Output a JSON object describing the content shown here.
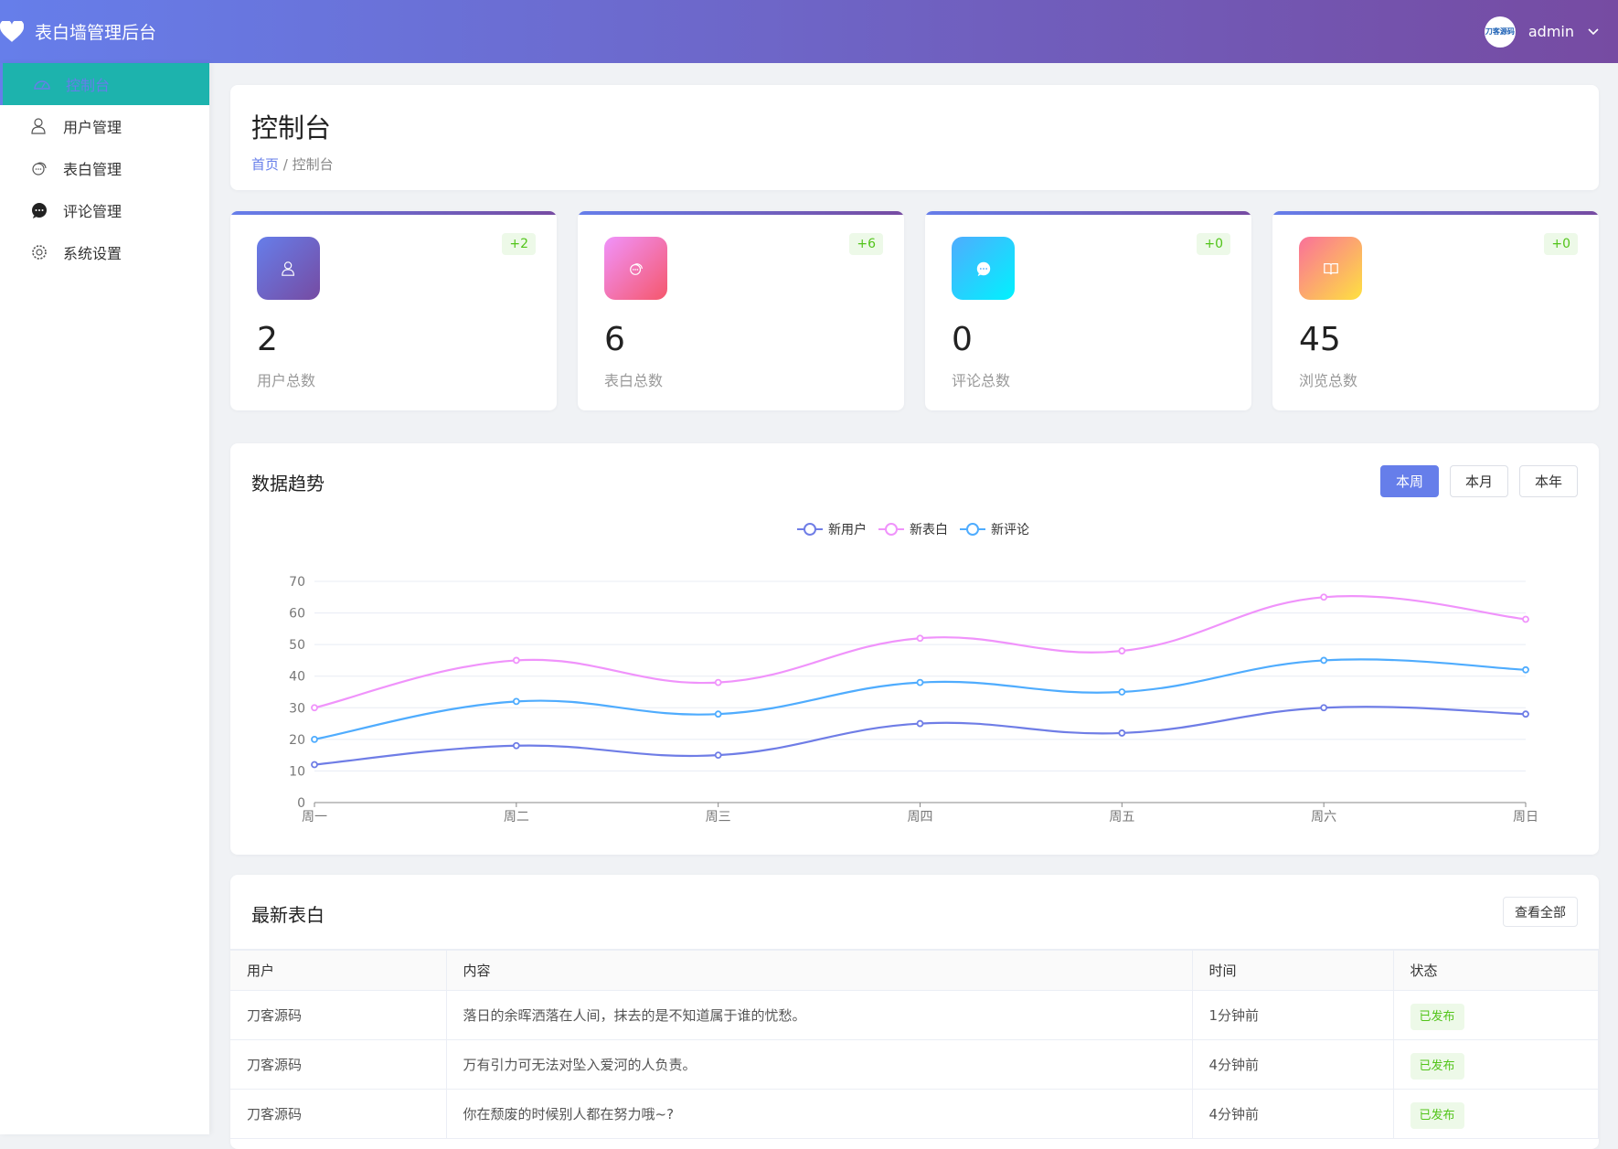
{
  "header": {
    "title": "表白墙管理后台",
    "user": "admin",
    "avatar_text": "刀客源码",
    "gradient": [
      "#667eea",
      "#764ba2"
    ]
  },
  "sidebar": {
    "items": [
      {
        "label": "控制台",
        "icon": "dashboard-icon",
        "active": true
      },
      {
        "label": "用户管理",
        "icon": "user-icon"
      },
      {
        "label": "表白管理",
        "icon": "chat-bubbles-icon"
      },
      {
        "label": "评论管理",
        "icon": "comment-icon"
      },
      {
        "label": "系统设置",
        "icon": "gear-icon"
      }
    ]
  },
  "page": {
    "title": "控制台",
    "breadcrumb": {
      "home": "首页",
      "sep": "/",
      "current": "控制台"
    }
  },
  "stats": [
    {
      "value": "2",
      "label": "用户总数",
      "delta": "+2",
      "icon": "user-icon"
    },
    {
      "value": "6",
      "label": "表白总数",
      "delta": "+6",
      "icon": "chat-bubbles-icon"
    },
    {
      "value": "0",
      "label": "评论总数",
      "delta": "+0",
      "icon": "comment-icon"
    },
    {
      "value": "45",
      "label": "浏览总数",
      "delta": "+0",
      "icon": "book-icon"
    }
  ],
  "trend": {
    "title": "数据趋势",
    "ranges": [
      "本周",
      "本月",
      "本年"
    ],
    "active_range": "本周"
  },
  "chart_data": {
    "type": "line",
    "smooth": true,
    "categories": [
      "周一",
      "周二",
      "周三",
      "周四",
      "周五",
      "周六",
      "周日"
    ],
    "ylim": [
      0,
      70
    ],
    "yticks": [
      0,
      10,
      20,
      30,
      40,
      50,
      60,
      70
    ],
    "grid": true,
    "legend": "top-center",
    "series": [
      {
        "name": "新用户",
        "color": "#6f7de6",
        "values": [
          12,
          18,
          15,
          25,
          22,
          30,
          28
        ]
      },
      {
        "name": "新表白",
        "color": "#f093fb",
        "values": [
          30,
          45,
          38,
          52,
          48,
          65,
          58
        ]
      },
      {
        "name": "新评论",
        "color": "#4facfe",
        "values": [
          20,
          32,
          28,
          38,
          35,
          45,
          42
        ]
      }
    ]
  },
  "latest": {
    "title": "最新表白",
    "view_all": "查看全部",
    "columns": [
      "用户",
      "内容",
      "时间",
      "状态"
    ],
    "rows": [
      [
        "刀客源码",
        "落日的余晖洒落在人间，抹去的是不知道属于谁的忧愁。",
        "1分钟前",
        "已发布"
      ],
      [
        "刀客源码",
        "万有引力可无法对坠入爱河的人负责。",
        "4分钟前",
        "已发布"
      ],
      [
        "刀客源码",
        "你在颓废的时候别人都在努力哦~?",
        "4分钟前",
        "已发布"
      ]
    ]
  }
}
